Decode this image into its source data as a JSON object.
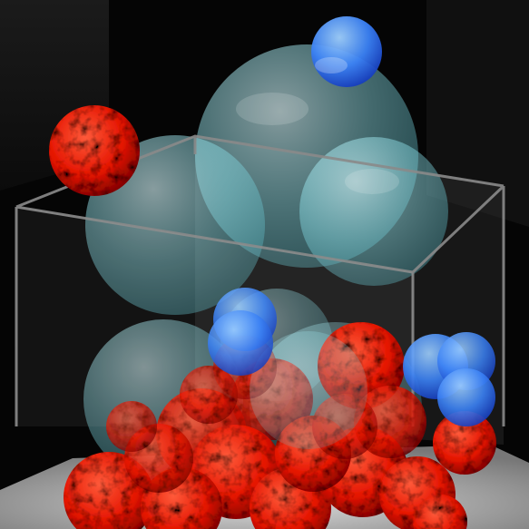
{
  "scene": {
    "background_color": "#050505",
    "container": {
      "edge_color": "#8a8a8a",
      "glass_color": "#b9b9b9",
      "floor_color": "#c8c8c8"
    },
    "spheres": {
      "large_translucent": {
        "color": "#8fe3ec",
        "count": 6
      },
      "small_blue": {
        "color": "#2f7cff",
        "count": 6
      },
      "red_textured": {
        "color": "#ff1a00",
        "count": 19
      }
    }
  }
}
